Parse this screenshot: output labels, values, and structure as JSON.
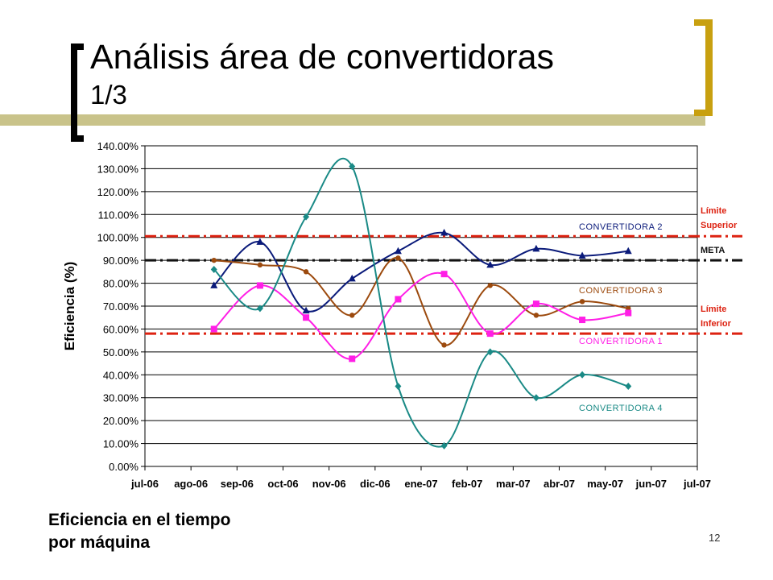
{
  "slide": {
    "title": "Análisis área de convertidoras",
    "subtitle": "1/3",
    "caption_line1": "Eficiencia en el tiempo",
    "caption_line2": "por máquina",
    "page_number": "12",
    "accent_colors": {
      "decor_bar": "#c9c38a",
      "bracket_right": "#c8a010",
      "bracket_left": "#000000"
    }
  },
  "chart_data": {
    "type": "line",
    "ylabel": "Eficiencia (%)",
    "xlabel": "",
    "ylim": [
      0,
      1.4
    ],
    "ytick_values": [
      0,
      0.1,
      0.2,
      0.3,
      0.4,
      0.5,
      0.6,
      0.7,
      0.8,
      0.9,
      1.0,
      1.1,
      1.2,
      1.3,
      1.4
    ],
    "ytick_labels": [
      "0.00%",
      "10.00%",
      "20.00%",
      "30.00%",
      "40.00%",
      "50.00%",
      "60.00%",
      "70.00%",
      "80.00%",
      "90.00%",
      "100.00%",
      "110.00%",
      "120.00%",
      "130.00%",
      "140.00%"
    ],
    "x_labels": [
      "jul-06",
      "ago-06",
      "sep-06",
      "oct-06",
      "nov-06",
      "dic-06",
      "ene-07",
      "feb-07",
      "mar-07",
      "abr-07",
      "may-07",
      "jun-07",
      "jul-07"
    ],
    "grid": true,
    "series": [
      {
        "name": "CONVERTIDORA 2",
        "color": "#0a1a7a",
        "marker": "triangle",
        "x": [
          1.5,
          2.5,
          3.5,
          4.5,
          5.5,
          6.5,
          7.5,
          8.5,
          9.5,
          10.5
        ],
        "values": [
          0.79,
          0.98,
          0.68,
          0.82,
          0.94,
          1.02,
          0.88,
          0.95,
          0.92,
          0.94
        ]
      },
      {
        "name": "CONVERTIDORA 3",
        "color": "#9c4a0e",
        "marker": "circle",
        "x": [
          1.5,
          2.5,
          3.5,
          4.5,
          5.5,
          6.5,
          7.5,
          8.5,
          9.5,
          10.5
        ],
        "values": [
          0.9,
          0.88,
          0.85,
          0.66,
          0.91,
          0.53,
          0.79,
          0.66,
          0.72,
          0.69
        ]
      },
      {
        "name": "CONVERTIDORA 1",
        "color": "#ff1ee6",
        "marker": "square",
        "x": [
          1.5,
          2.5,
          3.5,
          4.5,
          5.5,
          6.5,
          7.5,
          8.5,
          9.5,
          10.5
        ],
        "values": [
          0.6,
          0.79,
          0.65,
          0.47,
          0.73,
          0.84,
          0.58,
          0.71,
          0.64,
          0.67
        ]
      },
      {
        "name": "CONVERTIDORA 4",
        "color": "#1a8a86",
        "marker": "diamond",
        "x": [
          1.5,
          2.5,
          3.5,
          4.5,
          5.5,
          6.5,
          7.5,
          8.5,
          9.5,
          10.5
        ],
        "values": [
          0.86,
          0.69,
          1.09,
          1.31,
          0.35,
          0.09,
          0.5,
          0.3,
          0.4,
          0.35
        ]
      }
    ],
    "reference_lines": [
      {
        "label": "Límite Superior",
        "value": 1.005,
        "color": "#dd2211",
        "label_lines": [
          "Límite",
          "Superior"
        ]
      },
      {
        "label": "META",
        "value": 0.9,
        "color": "#111111",
        "label_lines": [
          "META"
        ]
      },
      {
        "label": "Límite Inferior",
        "value": 0.58,
        "color": "#dd2211",
        "label_lines": [
          "Límite",
          "Inferior"
        ]
      }
    ]
  }
}
